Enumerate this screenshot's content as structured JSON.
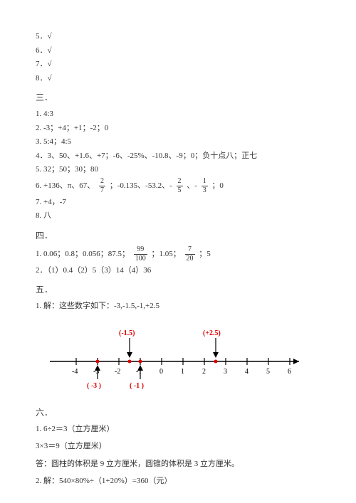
{
  "sec2_items": [
    "5．√",
    "6．√",
    "7．√",
    "8．√"
  ],
  "h3": "三．",
  "s3": {
    "l1": "1. 4:3",
    "l2": "2. -3；+4；+1；-2；0",
    "l3": "3. 5:4；4:5",
    "l4": "4．3、50、+1.6、+7；-6、-25%、-10.8、-9；0；负十点八；正七",
    "l5": "5. 32；50；30；80",
    "l6a": "6. +136、π、67、",
    "l6b": "；-0.135、-53.2、-",
    "l6c": "、-",
    "l6d": "；0",
    "l7": "7. +4，-7",
    "l8": "8. 八"
  },
  "frac": {
    "f27n": "2",
    "f27d": "7",
    "f25n": "2",
    "f25d": "5",
    "f13n": "1",
    "f13d": "3",
    "f99n": "99",
    "f99d": "100",
    "f720n": "7",
    "f720d": "20"
  },
  "h4": "四．",
  "s4": {
    "l1a": "1. 0.06；0.8；0.056；87.5；",
    "l1b": "；1.05；",
    "l1c": "；5",
    "l2": "2．（1）0.4（2）5（3）14（4）36"
  },
  "h5": "五．",
  "s5l1": "1. 解：这些数字如下：-3,-1.5,-1,+2.5",
  "nl": {
    "ticks": [
      "-4",
      "-3",
      "-2",
      "-1",
      "0",
      "1",
      "2",
      "3",
      "4",
      "5",
      "6"
    ],
    "pt1_top": "(-1.5)",
    "pt2_top": "(+2.5)",
    "pt1_bot": "( -3 )",
    "pt2_bot": "( -1 )"
  },
  "h6": "六．",
  "s6": {
    "l1": "1. 6÷2＝3（立方厘米）",
    "l2": "3×3＝9（立方厘米）",
    "l3": "答：圆柱的体积是 9 立方厘米，圆锥的体积是 3 立方厘米。",
    "l4": "2. 解：540×80%÷（1+20%）=360（元）"
  }
}
